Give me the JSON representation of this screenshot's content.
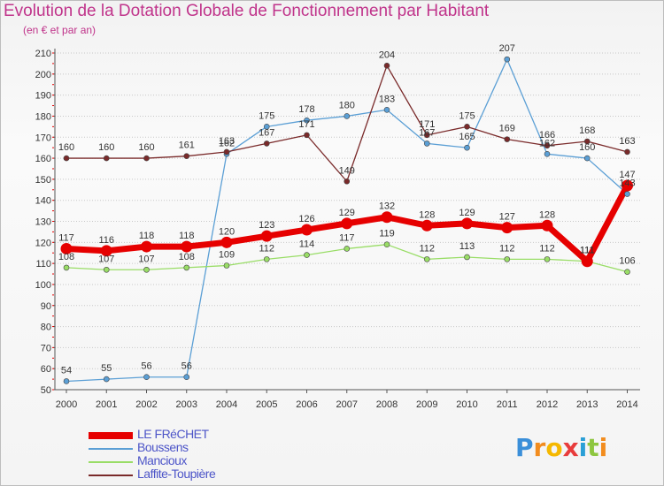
{
  "title": "Evolution de la Dotation Globale de Fonctionnement par Habitant",
  "subtitle": "(en € et par an)",
  "brand": {
    "text": "Proxiti",
    "letters": [
      {
        "ch": "P",
        "color": "#3b8fd9"
      },
      {
        "ch": "r",
        "color": "#f28c1e"
      },
      {
        "ch": "o",
        "color": "#f5b800"
      },
      {
        "ch": "x",
        "color": "#e83c3c"
      },
      {
        "ch": "i",
        "color": "#2a9fd6"
      },
      {
        "ch": "t",
        "color": "#8dc63f"
      },
      {
        "ch": "i",
        "color": "#f28c1e"
      }
    ]
  },
  "chart_data": {
    "type": "line",
    "title": "Evolution de la Dotation Globale de Fonctionnement par Habitant",
    "subtitle": "(en € et par an)",
    "xlabel": "",
    "ylabel": "",
    "x": [
      2000,
      2001,
      2002,
      2003,
      2004,
      2005,
      2006,
      2007,
      2008,
      2009,
      2010,
      2011,
      2012,
      2013,
      2014
    ],
    "ylim": [
      50,
      210
    ],
    "yticks": [
      50,
      60,
      70,
      80,
      90,
      100,
      110,
      120,
      130,
      140,
      150,
      160,
      170,
      180,
      190,
      200,
      210
    ],
    "grid": "horizontal dotted",
    "legend_position": "bottom-left",
    "series": [
      {
        "name": "LE FRéCHET",
        "color": "#e60000",
        "emphasis": true,
        "values": [
          117,
          116,
          118,
          118,
          120,
          123,
          126,
          129,
          132,
          128,
          129,
          127,
          128,
          111,
          147
        ]
      },
      {
        "name": "Boussens",
        "color": "#5b9fd5",
        "emphasis": false,
        "values": [
          54,
          55,
          56,
          56,
          162,
          175,
          178,
          180,
          183,
          167,
          165,
          207,
          162,
          160,
          143
        ]
      },
      {
        "name": "Mancioux",
        "color": "#99dd66",
        "emphasis": false,
        "values": [
          108,
          107,
          107,
          108,
          109,
          112,
          114,
          117,
          119,
          112,
          113,
          112,
          112,
          111,
          106
        ]
      },
      {
        "name": "Laffite-Toupière",
        "color": "#7a2a2a",
        "emphasis": false,
        "values": [
          160,
          160,
          160,
          161,
          163,
          167,
          171,
          149,
          204,
          171,
          175,
          169,
          166,
          168,
          163
        ]
      }
    ]
  }
}
